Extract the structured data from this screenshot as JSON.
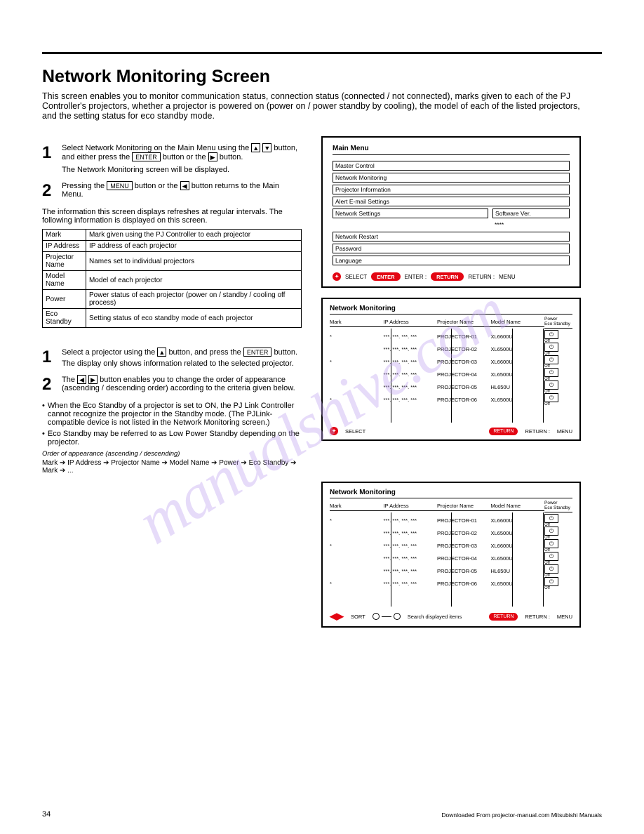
{
  "page": {
    "title": "Network Monitoring Screen",
    "intro": "This screen enables you to monitor communication status, connection status (connected / not connected), marks given to each of the PJ Controller's projectors, whether a projector is powered on (power on / power standby by cooling), the model of each of the listed projectors, and the setting status for eco standby mode.",
    "page_num": "34",
    "download_note": "Downloaded From projector-manual.com Mitsubishi Manuals"
  },
  "left": {
    "s1": {
      "num": "1",
      "text": "Select Network Monitoring on the Main Menu using the",
      "key1": "▲",
      "key2": "▼",
      "text2": "button, and either press the",
      "key3": "ENTER",
      "text3": "button or the",
      "key4": "▶",
      "text4": "button."
    },
    "s1b": "The Network Monitoring screen will be displayed.",
    "s2": {
      "num": "2",
      "text": "Pressing the",
      "key1": "MENU",
      "text2": "button or the",
      "key2": "◀",
      "text3": "button returns to the Main Menu."
    },
    "listTitle": "The information this screen displays refreshes at regular intervals. The following information is displayed on this screen.",
    "table": [
      [
        "Mark",
        "Mark given using the PJ Controller to each projector"
      ],
      [
        "IP Address",
        "IP address of each projector"
      ],
      [
        "Projector Name",
        "Names set to individual projectors"
      ],
      [
        "Model Name",
        "Model of each projector"
      ],
      [
        "Power",
        "Power status of each projector (power on / standby / cooling off process)"
      ],
      [
        "Eco Standby",
        "Setting status of eco standby mode of each projector"
      ]
    ]
  },
  "left2": {
    "s1": {
      "num": "1",
      "text": "Select a projector using the",
      "key": "▲▼",
      "text2": "button, and press the",
      "key2": "ENTER",
      "text3": "button."
    },
    "s1b": "The display only shows information related to the selected projector.",
    "s2": {
      "num": "2",
      "text": "The",
      "key1": "◀",
      "key2": "▶",
      "text2": "button enables you to change the order of appearance (ascending / descending order) according to the criteria given below."
    },
    "note1": "When the Eco Standby of a projector is set to ON, the PJ Link Controller cannot recognize the projector in the Standby mode. (The PJLink-compatible device is not listed in the Network Monitoring screen.)",
    "note2": "Eco Standby may be referred to as Low Power Standby depending on the projector.",
    "orderLabel": "Order of appearance (ascending / descending)",
    "orderItems": "Mark ➔ IP Address ➔ Projector Name ➔ Model Name ➔ Power ➔ Eco Standby ➔ Mark ➔ ..."
  },
  "panelA": {
    "title": "Main Menu",
    "items": [
      "Master Control",
      "Network Monitoring",
      "Projector Information",
      "Alert E-mail Settings",
      "Network Settings",
      "Network Restart",
      "Password",
      "Language"
    ],
    "sideLabel": "Software Ver.",
    "sideVal": "****",
    "footL": "SELECT",
    "footE": "ENTER :",
    "footR": "RETURN :",
    "footM": "MENU"
  },
  "panelB": {
    "title": "Network Monitoring",
    "cols": [
      "Mark",
      "IP Address",
      "Projector Name",
      "Model Name",
      "Power",
      "Eco Standby"
    ],
    "rows": [
      [
        "*",
        "***. ***. ***. ***",
        "PROJECTOR-01",
        "XL6600U",
        "⏻",
        "Off"
      ],
      [
        "",
        "***. ***. ***. ***",
        "PROJECTOR-02",
        "XL6500U",
        "⏻",
        "Off"
      ],
      [
        "*",
        "***. ***. ***. ***",
        "PROJECTOR-03",
        "XL6600U",
        "⏻",
        "Off"
      ],
      [
        "",
        "***. ***. ***. ***",
        "PROJECTOR-04",
        "XL6500U",
        "⏻",
        "Off"
      ],
      [
        "",
        "***. ***. ***. ***",
        "PROJECTOR-05",
        "HL650U",
        "⏻",
        "Off"
      ],
      [
        "*",
        "***. ***. ***. ***",
        "PROJECTOR-06",
        "XL6500U",
        "⏻",
        "Off"
      ]
    ],
    "footSel": "SELECT",
    "footR": "RETURN :",
    "footM": "MENU"
  },
  "panelC": {
    "title": "Network Monitoring",
    "cols": [
      "Mark",
      "IP Address",
      "Projector Name",
      "Model Name",
      "Power",
      "Eco Standby"
    ],
    "rows": [
      [
        "*",
        "***. ***. ***. ***",
        "PROJECTOR-01",
        "XL6600U",
        "⏻",
        "Off"
      ],
      [
        "",
        "***. ***. ***. ***",
        "PROJECTOR-02",
        "XL6500U",
        "⏻",
        "Off"
      ],
      [
        "*",
        "***. ***. ***. ***",
        "PROJECTOR-03",
        "XL6600U",
        "⏻",
        "Off"
      ],
      [
        "",
        "***. ***. ***. ***",
        "PROJECTOR-04",
        "XL6500U",
        "⏻",
        "Off"
      ],
      [
        "",
        "***. ***. ***. ***",
        "PROJECTOR-05",
        "HL650U",
        "⏻",
        "Off"
      ],
      [
        "*",
        "***. ***. ***. ***",
        "PROJECTOR-06",
        "XL6500U",
        "⏻",
        "Off"
      ]
    ],
    "footSort": "SORT",
    "footSearch": "Search displayed items",
    "footR": "RETURN :",
    "footM": "MENU"
  }
}
